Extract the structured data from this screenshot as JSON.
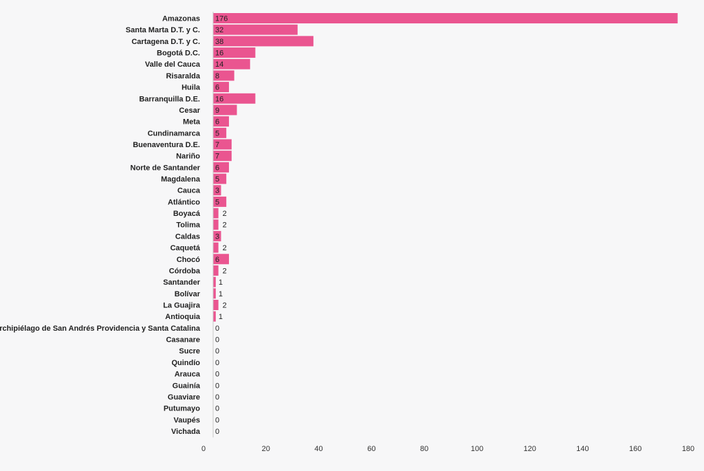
{
  "chart_data": {
    "type": "bar",
    "orientation": "horizontal",
    "title": "",
    "xlabel": "",
    "ylabel": "",
    "categories": [
      "Amazonas",
      "Santa Marta D.T. y C.",
      "Cartagena D.T. y C.",
      "Bogotá D.C.",
      "Valle del Cauca",
      "Risaralda",
      "Huila",
      "Barranquilla D.E.",
      "Cesar",
      "Meta",
      "Cundinamarca",
      "Buenaventura D.E.",
      "Nariño",
      "Norte de Santander",
      "Magdalena",
      "Cauca",
      "Atlántico",
      "Boyacá",
      "Tolima",
      "Caldas",
      "Caquetá",
      "Chocó",
      "Córdoba",
      "Santander",
      "Bolívar",
      "La Guajira",
      "Antioquia",
      "Archipiélago de San Andrés Providencia y Santa Catalina",
      "Casanare",
      "Sucre",
      "Quindío",
      "Arauca",
      "Guainía",
      "Guaviare",
      "Putumayo",
      "Vaupés",
      "Vichada"
    ],
    "values": [
      176,
      32,
      38,
      16,
      14,
      8,
      6,
      16,
      9,
      6,
      5,
      7,
      7,
      6,
      5,
      3,
      5,
      2,
      2,
      3,
      2,
      6,
      2,
      1,
      1,
      2,
      1,
      0,
      0,
      0,
      0,
      0,
      0,
      0,
      0,
      0,
      0
    ],
    "xlim": [
      0,
      180
    ],
    "xticks": [
      "0",
      "20",
      "40",
      "60",
      "80",
      "100",
      "120",
      "140",
      "160",
      "180"
    ],
    "grid": false,
    "bar_color": "#ea5590"
  }
}
